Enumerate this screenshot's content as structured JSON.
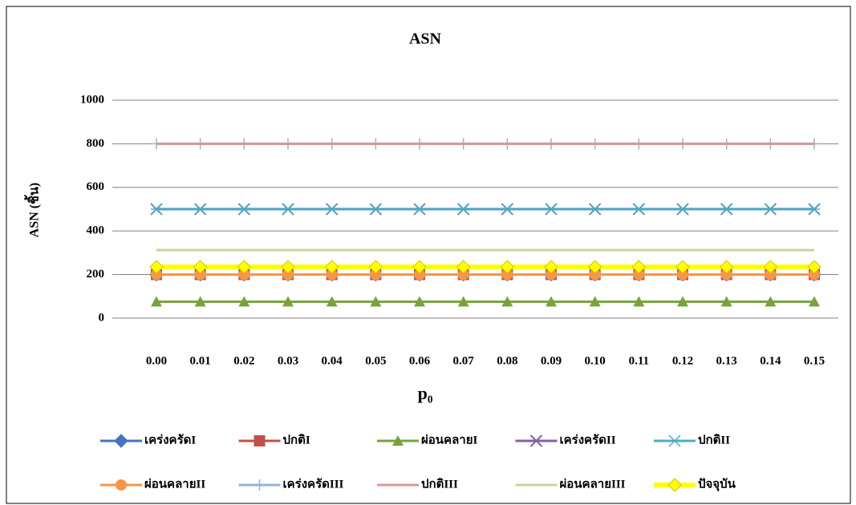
{
  "chart_data": {
    "type": "line",
    "title": "ASN",
    "y_label": "ASN (ชิ้น)",
    "x_label": "p₀",
    "categories": [
      "0.00",
      "0.01",
      "0.02",
      "0.03",
      "0.04",
      "0.05",
      "0.06",
      "0.07",
      "0.08",
      "0.09",
      "0.10",
      "0.11",
      "0.12",
      "0.13",
      "0.14",
      "0.15"
    ],
    "ylim": [
      -100,
      1000
    ],
    "yticks": [
      0,
      200,
      400,
      600,
      800,
      1000
    ],
    "grid": true,
    "legend": "bottom",
    "series": [
      {
        "name": "เคร่งครัดI",
        "color": "#4472c4",
        "marker": "diamond",
        "line_width": 3,
        "values": [
          200,
          200,
          200,
          200,
          200,
          200,
          200,
          200,
          200,
          200,
          200,
          200,
          200,
          200,
          200,
          200
        ]
      },
      {
        "name": "ปกติI",
        "color": "#c0504d",
        "marker": "square",
        "line_width": 3,
        "values": [
          200,
          200,
          200,
          200,
          200,
          200,
          200,
          200,
          200,
          200,
          200,
          200,
          200,
          200,
          200,
          200
        ]
      },
      {
        "name": "ผ่อนคลายI",
        "color": "#77a33b",
        "marker": "triangle",
        "line_width": 3,
        "values": [
          75,
          75,
          75,
          75,
          75,
          75,
          75,
          75,
          75,
          75,
          75,
          75,
          75,
          75,
          75,
          75
        ]
      },
      {
        "name": "เคร่งครัดII",
        "color": "#8064a2",
        "marker": "x",
        "line_width": 3,
        "values": [
          500,
          500,
          500,
          500,
          500,
          500,
          500,
          500,
          500,
          500,
          500,
          500,
          500,
          500,
          500,
          500
        ]
      },
      {
        "name": "ปกติII",
        "color": "#4bacc6",
        "marker": "star",
        "line_width": 3,
        "values": [
          500,
          500,
          500,
          500,
          500,
          500,
          500,
          500,
          500,
          500,
          500,
          500,
          500,
          500,
          500,
          500
        ]
      },
      {
        "name": "ผ่อนคลายII",
        "color": "#f79646",
        "marker": "circle",
        "line_width": 3,
        "values": [
          200,
          200,
          200,
          200,
          200,
          200,
          200,
          200,
          200,
          200,
          200,
          200,
          200,
          200,
          200,
          200
        ]
      },
      {
        "name": "เคร่งครัดIII",
        "color": "#95b3d7",
        "marker": "plus",
        "line_width": 3,
        "values": [
          800,
          800,
          800,
          800,
          800,
          800,
          800,
          800,
          800,
          800,
          800,
          800,
          800,
          800,
          800,
          800
        ]
      },
      {
        "name": "ปกติIII",
        "color": "#d99694",
        "marker": "none",
        "line_width": 3,
        "values": [
          800,
          800,
          800,
          800,
          800,
          800,
          800,
          800,
          800,
          800,
          800,
          800,
          800,
          800,
          800,
          800
        ]
      },
      {
        "name": "ผ่อนคลายIII",
        "color": "#c3d69b",
        "marker": "none",
        "line_width": 3,
        "values": [
          312,
          312,
          312,
          312,
          312,
          312,
          312,
          312,
          312,
          312,
          312,
          312,
          312,
          312,
          312,
          312
        ]
      },
      {
        "name": "ปัจจุบัน",
        "color": "#ffff00",
        "marker": "diamond",
        "line_width": 6,
        "values": [
          235,
          235,
          235,
          235,
          235,
          235,
          235,
          235,
          235,
          235,
          235,
          235,
          235,
          235,
          235,
          235
        ]
      }
    ]
  }
}
